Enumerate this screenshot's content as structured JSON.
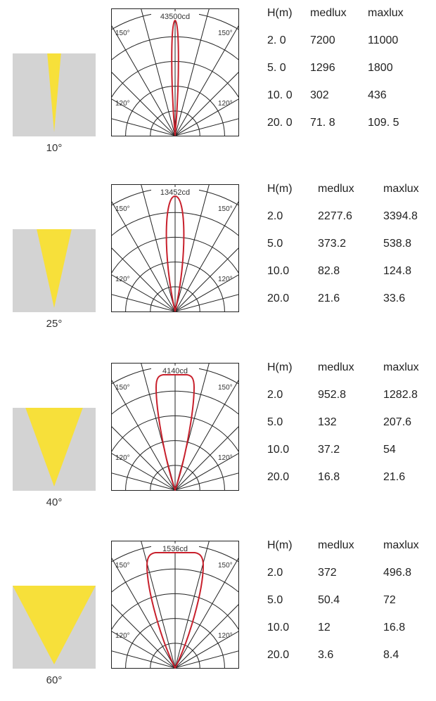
{
  "colors": {
    "beam": "#f7e03a",
    "beam_bg": "#d3d3d3",
    "curve": "#c8202c",
    "grid": "#222222"
  },
  "columns": [
    "H(m)",
    "medlux",
    "maxlux"
  ],
  "angle_labels": {
    "outer": "150°",
    "inner": "120°"
  },
  "rows": [
    {
      "beam_angle": "10°",
      "beam_angle_deg": 10,
      "peak_intensity": "43500cd",
      "table": {
        "headers": [
          "H(m)",
          "medlux",
          "maxlux"
        ],
        "rows": [
          [
            "2. 0",
            "7200",
            "11000"
          ],
          [
            "5. 0",
            "1296",
            "1800"
          ],
          [
            "10. 0",
            "302",
            "436"
          ],
          [
            "20. 0",
            "71. 8",
            "109. 5"
          ]
        ]
      }
    },
    {
      "beam_angle": "25°",
      "beam_angle_deg": 25,
      "peak_intensity": "13452cd",
      "table": {
        "headers": [
          "H(m)",
          "medlux",
          "maxlux"
        ],
        "rows": [
          [
            "2.0",
            "2277.6",
            "3394.8"
          ],
          [
            "5.0",
            "373.2",
            "538.8"
          ],
          [
            "10.0",
            "82.8",
            "124.8"
          ],
          [
            "20.0",
            "21.6",
            "33.6"
          ]
        ]
      }
    },
    {
      "beam_angle": "40°",
      "beam_angle_deg": 40,
      "peak_intensity": "4140cd",
      "table": {
        "headers": [
          "H(m)",
          "medlux",
          "maxlux"
        ],
        "rows": [
          [
            "2.0",
            "952.8",
            "1282.8"
          ],
          [
            "5.0",
            "132",
            "207.6"
          ],
          [
            "10.0",
            "37.2",
            "54"
          ],
          [
            "20.0",
            "16.8",
            "21.6"
          ]
        ]
      }
    },
    {
      "beam_angle": "60°",
      "beam_angle_deg": 60,
      "peak_intensity": "1536cd",
      "table": {
        "headers": [
          "H(m)",
          "medlux",
          "maxlux"
        ],
        "rows": [
          [
            "2.0",
            "372",
            "496.8"
          ],
          [
            "5.0",
            "50.4",
            "72"
          ],
          [
            "10.0",
            "12",
            "16.8"
          ],
          [
            "20.0",
            "3.6",
            "8.4"
          ]
        ]
      }
    }
  ]
}
